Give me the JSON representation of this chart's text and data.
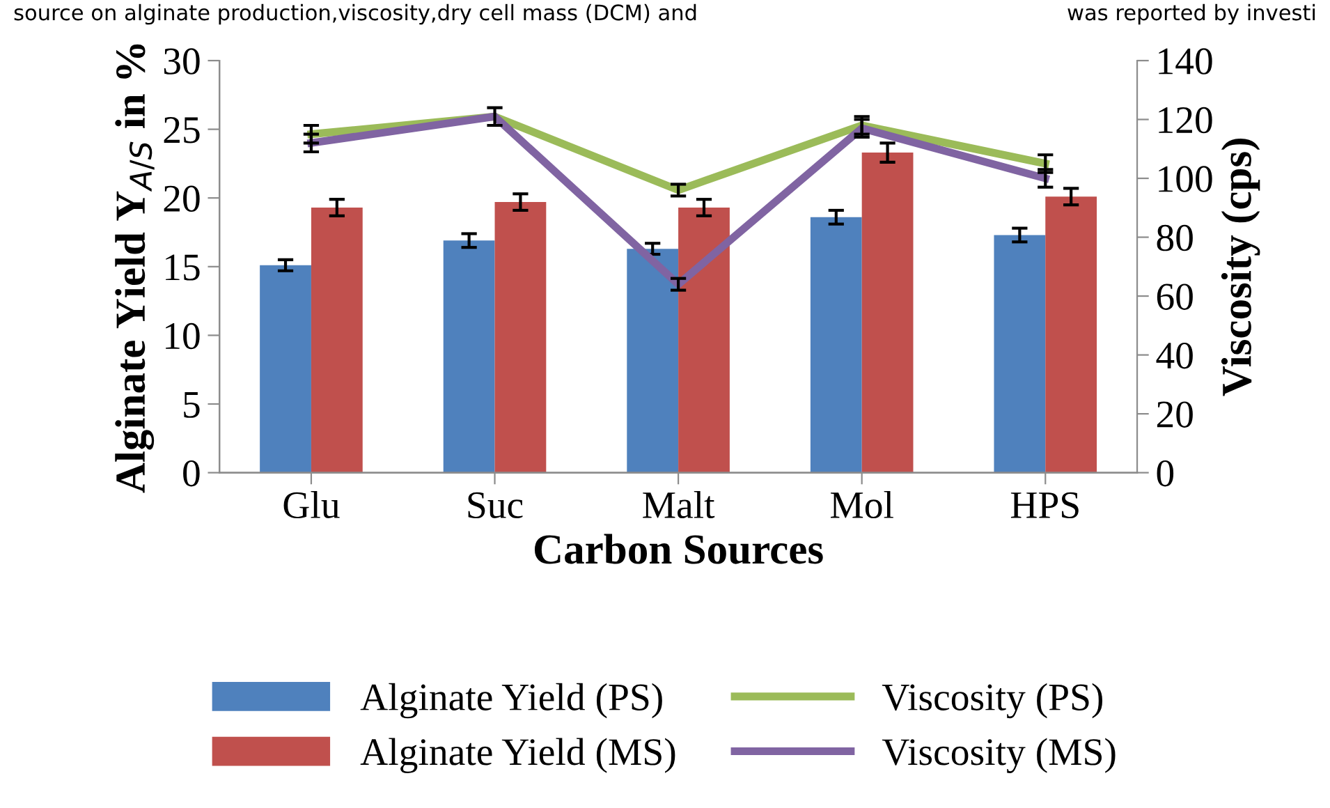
{
  "chart_data": {
    "type": "bar",
    "xlabel": "Carbon Sources",
    "ylabel": "Alginate Yield Y$_{A/S}$ in %",
    "y2label": "Viscosity (cps)",
    "annotations": [
      "source on alginate production,viscosity,dry cell mass (DCM) and",
      "was reported by investi"
    ],
    "categories": [
      "Glu",
      "Suc",
      "Malt",
      "Mol",
      "HPS"
    ],
    "series": [
      {
        "name": "Alginate Yield (PS)",
        "color": "#4f81bd",
        "values": [
          15.1,
          16.9,
          16.3,
          18.6,
          17.3
        ],
        "errors": [
          0.4,
          0.5,
          0.4,
          0.5,
          0.5
        ]
      },
      {
        "name": "Alginate Yield (MS)",
        "color": "#c0504d",
        "values": [
          19.3,
          19.7,
          19.3,
          23.3,
          20.1
        ],
        "errors": [
          0.6,
          0.6,
          0.6,
          0.7,
          0.6
        ]
      },
      {
        "name": "Viscosity (PS)",
        "type": "line",
        "axis": "y2",
        "color": "#9bbb59",
        "values": [
          115,
          121,
          96,
          118,
          105
        ],
        "errors": [
          3,
          3,
          2,
          3,
          3
        ]
      },
      {
        "name": "Viscosity (MS)",
        "type": "line",
        "axis": "y2",
        "color": "#8064a2",
        "values": [
          112,
          121,
          64,
          117,
          100
        ],
        "errors": [
          3,
          null,
          2,
          3,
          3
        ]
      }
    ],
    "ylim": [
      0,
      30
    ],
    "yticks": [
      0,
      5,
      10,
      15,
      20,
      25,
      30
    ],
    "y2lim": [
      0,
      140
    ],
    "y2ticks": [
      0,
      20,
      40,
      60,
      80,
      100,
      120,
      140
    ],
    "legend": "bottom",
    "grid": false,
    "marker": "none"
  }
}
